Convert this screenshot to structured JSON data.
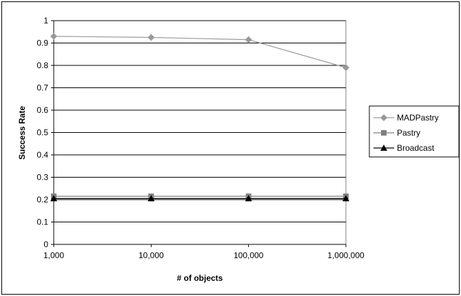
{
  "chart_data": {
    "type": "line",
    "categories": [
      "1,000",
      "10,000",
      "100,000",
      "1,000,000"
    ],
    "series": [
      {
        "name": "MADPastry",
        "values": [
          0.93,
          0.925,
          0.915,
          0.79
        ],
        "color": "#999999",
        "marker": "diamond"
      },
      {
        "name": "Pastry",
        "values": [
          0.215,
          0.215,
          0.215,
          0.215
        ],
        "color": "#808080",
        "marker": "square"
      },
      {
        "name": "Broadcast",
        "values": [
          0.205,
          0.205,
          0.205,
          0.205
        ],
        "color": "#000000",
        "marker": "triangle"
      }
    ],
    "yticks": [
      "0",
      "0.1",
      "0.2",
      "0.3",
      "0.4",
      "0.5",
      "0.6",
      "0.7",
      "0.8",
      "0.9",
      "1"
    ],
    "ylim": [
      0,
      1
    ],
    "xlabel": "# of objects",
    "ylabel": "Success Rate",
    "grid": true,
    "legend_position": "right"
  }
}
